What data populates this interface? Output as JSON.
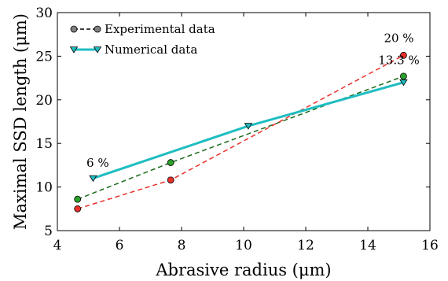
{
  "chart_data": {
    "type": "line",
    "xlabel": "Abrasive radius (μm)",
    "ylabel": "Maximal SSD length (μm)",
    "xlim": [
      4,
      16
    ],
    "ylim": [
      5,
      30
    ],
    "x_ticks": [
      4,
      6,
      8,
      10,
      12,
      14,
      16
    ],
    "y_ticks": [
      5,
      10,
      15,
      20,
      25,
      30
    ],
    "grid": false,
    "legend_position": "top-left",
    "series": [
      {
        "name": "Experimental data",
        "style": "dashed",
        "color": "#1a6b1a",
        "marker_color": "#808080",
        "points": [
          {
            "x": 4.65,
            "y": 8.6,
            "color": "#2ca02c"
          },
          {
            "x": 7.65,
            "y": 12.8,
            "color": "#2ca02c"
          },
          {
            "x": 15.15,
            "y": 22.7,
            "color": "#2ca02c"
          }
        ]
      },
      {
        "name": "",
        "style": "dashed",
        "color": "#e8302a",
        "points": [
          {
            "x": 4.65,
            "y": 7.5,
            "color": "#e8302a"
          },
          {
            "x": 7.65,
            "y": 10.8,
            "color": "#e8302a"
          },
          {
            "x": 15.15,
            "y": 25.1,
            "color": "#e8302a"
          }
        ]
      },
      {
        "name": "Numerical data",
        "style": "solid",
        "color": "#1fbdc2",
        "marker": "triangle-down",
        "points": [
          {
            "x": 5.15,
            "y": 11.0
          },
          {
            "x": 10.15,
            "y": 17.0
          },
          {
            "x": 15.15,
            "y": 22.0
          }
        ]
      }
    ],
    "annotations": [
      {
        "text": "6 %",
        "x": 5.3,
        "y": 12.3
      },
      {
        "text": "20 %",
        "x": 15.0,
        "y": 26.6
      },
      {
        "text": "13.3 %",
        "x": 15.0,
        "y": 24.1
      }
    ]
  }
}
